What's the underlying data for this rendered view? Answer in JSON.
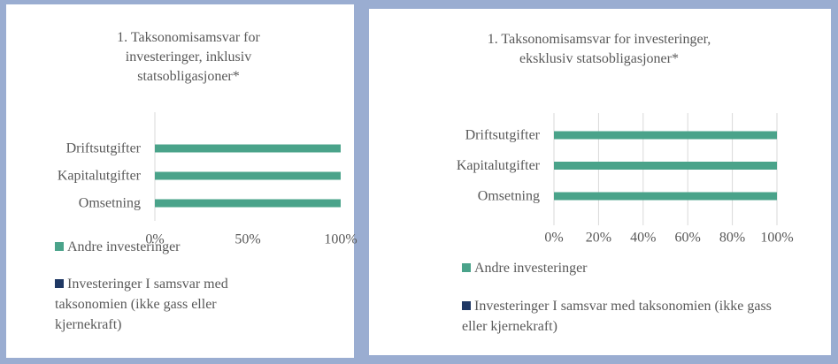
{
  "chart_data": [
    {
      "type": "bar",
      "orientation": "horizontal",
      "stacked": true,
      "title": "1. Taksonomisamsvar for investeringer, inklusiv statsobligasjoner*",
      "categories": [
        "Driftsutgifter",
        "Kapitalutgifter",
        "Omsetning"
      ],
      "series": [
        {
          "name": "Andre investeringer",
          "color": "#4aa38a",
          "values": [
            100,
            100,
            100
          ]
        },
        {
          "name": "Investeringer I samsvar med taksonomien (ikke gass eller kjernekraft)",
          "color": "#1f3864",
          "values": [
            0,
            0,
            0
          ]
        }
      ],
      "xlim": [
        0,
        100
      ],
      "xticks": [
        {
          "value": 0,
          "label": "0%"
        },
        {
          "value": 50,
          "label": "50%"
        },
        {
          "value": 100,
          "label": "100%"
        }
      ],
      "grid": false,
      "legend": "bottom"
    },
    {
      "type": "bar",
      "orientation": "horizontal",
      "stacked": true,
      "title": "1. Taksonomisamsvar for investeringer, eksklusiv statsobligasjoner*",
      "categories": [
        "Driftsutgifter",
        "Kapitalutgifter",
        "Omsetning"
      ],
      "series": [
        {
          "name": "Andre investeringer",
          "color": "#4aa38a",
          "values": [
            100,
            100,
            100
          ]
        },
        {
          "name": "Investeringer I samsvar med taksonomien (ikke gass eller kjernekraft)",
          "color": "#1f3864",
          "values": [
            0,
            0,
            0
          ]
        }
      ],
      "xlim": [
        0,
        100
      ],
      "xticks": [
        {
          "value": 0,
          "label": "0%"
        },
        {
          "value": 20,
          "label": "20%"
        },
        {
          "value": 40,
          "label": "40%"
        },
        {
          "value": 60,
          "label": "60%"
        },
        {
          "value": 80,
          "label": "80%"
        },
        {
          "value": 100,
          "label": "100%"
        }
      ],
      "grid": true,
      "legend": "bottom"
    }
  ]
}
